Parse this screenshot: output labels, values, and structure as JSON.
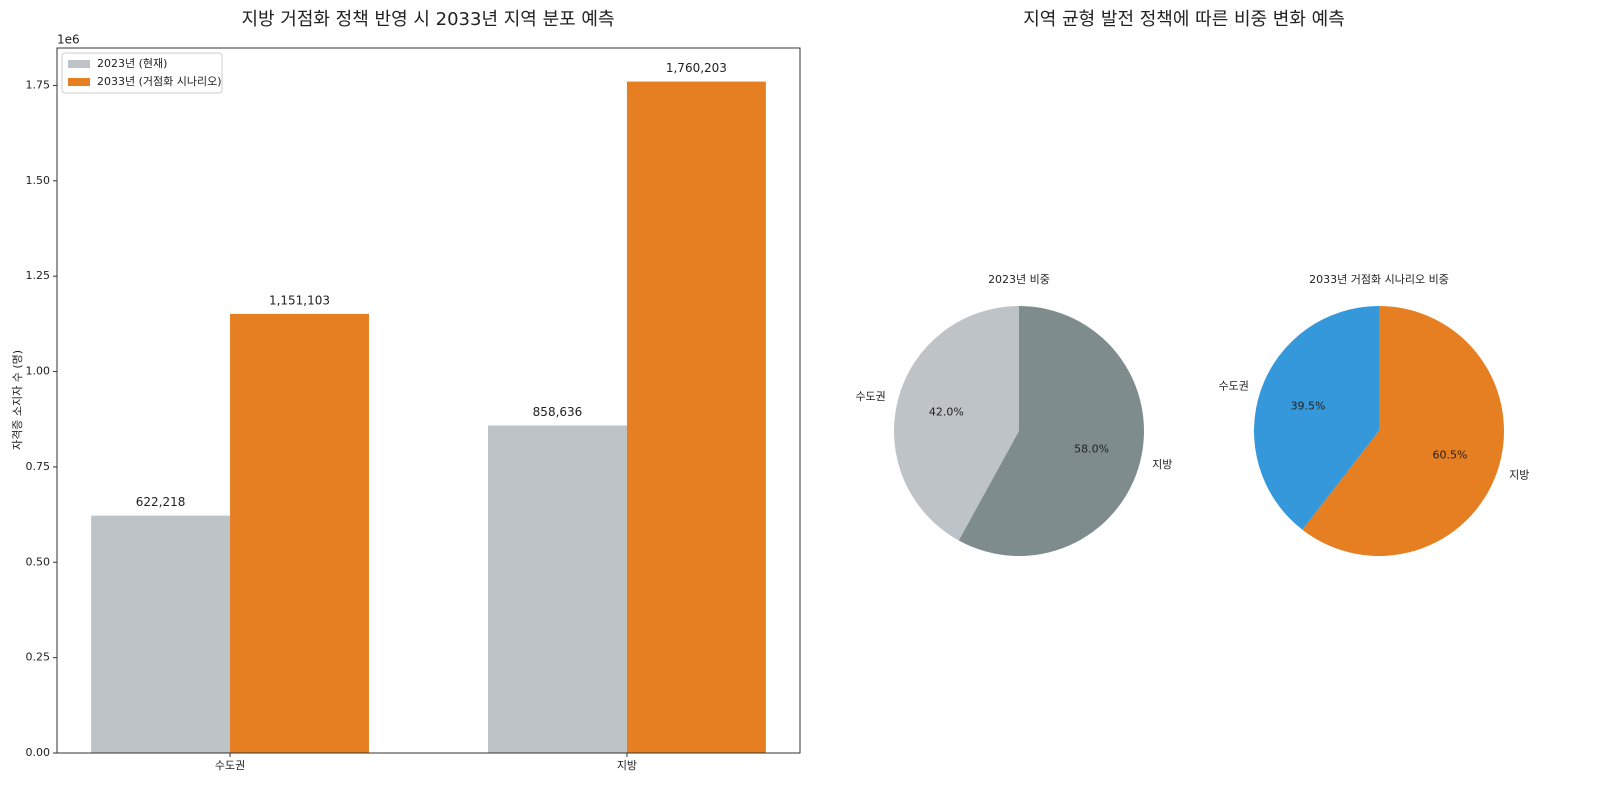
{
  "chart_data": [
    {
      "type": "bar",
      "title": "지방 거점화 정책 반영 시 2033년 지역 분포 예측",
      "y_label": "자격증 소지자 수 (명)",
      "y_offset_text": "1e6",
      "categories": [
        "수도권",
        "지방"
      ],
      "series": [
        {
          "name": "2023년 (현재)",
          "color": "#bdc3c7",
          "values": [
            622218,
            858636
          ],
          "value_labels": [
            "622,218",
            "858,636"
          ]
        },
        {
          "name": "2033년 (거점화 시나리오)",
          "color": "#e67e22",
          "values": [
            1151103,
            1760203
          ],
          "value_labels": [
            "1,151,103",
            "1,760,203"
          ]
        }
      ],
      "ylim": [
        0,
        1848213
      ],
      "yticks": [
        {
          "value": 0,
          "label": "0.00"
        },
        {
          "value": 250000,
          "label": "0.25"
        },
        {
          "value": 500000,
          "label": "0.50"
        },
        {
          "value": 750000,
          "label": "0.75"
        },
        {
          "value": 1000000,
          "label": "1.00"
        },
        {
          "value": 1250000,
          "label": "1.25"
        },
        {
          "value": 1500000,
          "label": "1.50"
        },
        {
          "value": 1750000,
          "label": "1.75"
        }
      ],
      "legend": "upper left"
    },
    {
      "type": "pie",
      "suptitle": "지역 균형 발전 정책에 따른 비중 변화 예측",
      "title": "2023년 비중",
      "categories": [
        "수도권",
        "지방"
      ],
      "values": [
        42.0,
        58.0
      ],
      "value_labels": [
        "42.0%",
        "58.0%"
      ],
      "colors": [
        "#bdc3c7",
        "#7f8c8d"
      ]
    },
    {
      "type": "pie",
      "title": "2033년 거점화 시나리오 비중",
      "categories": [
        "수도권",
        "지방"
      ],
      "values": [
        39.5,
        60.5
      ],
      "value_labels": [
        "39.5%",
        "60.5%"
      ],
      "colors": [
        "#3498db",
        "#e67e22"
      ]
    }
  ]
}
